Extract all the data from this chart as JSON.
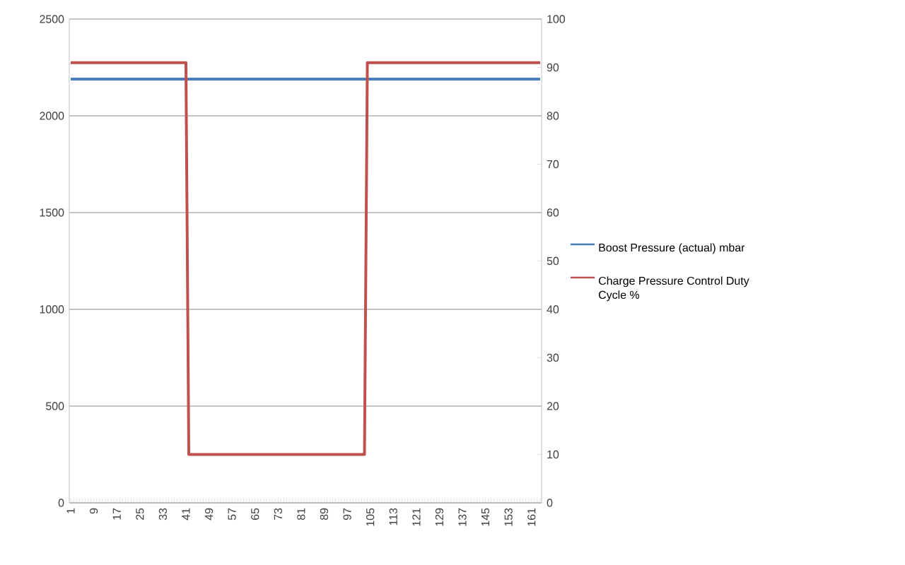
{
  "chart_data": {
    "type": "line",
    "categories": [
      "1",
      null,
      null,
      null,
      null,
      null,
      null,
      null,
      "9",
      null,
      null,
      null,
      null,
      null,
      null,
      null,
      "17",
      null,
      null,
      null,
      null,
      null,
      null,
      null,
      "25",
      null,
      null,
      null,
      null,
      null,
      null,
      null,
      "33",
      null,
      null,
      null,
      null,
      null,
      null,
      null,
      "41",
      null,
      null,
      null,
      null,
      null,
      null,
      null,
      "49",
      null,
      null,
      null,
      null,
      null,
      null,
      null,
      "57",
      null,
      null,
      null,
      null,
      null,
      null,
      null,
      "65",
      null,
      null,
      null,
      null,
      null,
      null,
      null,
      "73",
      null,
      null,
      null,
      null,
      null,
      null,
      null,
      "81",
      null,
      null,
      null,
      null,
      null,
      null,
      null,
      "89",
      null,
      null,
      null,
      null,
      null,
      null,
      null,
      "97",
      null,
      null,
      null,
      null,
      null,
      null,
      null,
      "105",
      null,
      null,
      null,
      null,
      null,
      null,
      null,
      "113",
      null,
      null,
      null,
      null,
      null,
      null,
      null,
      "121",
      null,
      null,
      null,
      null,
      null,
      null,
      null,
      "129",
      null,
      null,
      null,
      null,
      null,
      null,
      null,
      "137",
      null,
      null,
      null,
      null,
      null,
      null,
      null,
      "145",
      null,
      null,
      null,
      null,
      null,
      null,
      null,
      "153",
      null,
      null,
      null,
      null,
      null,
      null,
      null,
      "161",
      null,
      null,
      null
    ],
    "series": [
      {
        "name": "Boost Pressure (actual)  mbar",
        "color": "#4a7ebb",
        "values": [
          2190,
          2190,
          2190,
          2190,
          2190,
          2190,
          2190,
          2190,
          2190,
          2190,
          2190,
          2190,
          2190,
          2190,
          2190,
          2190,
          2190,
          2190,
          2190,
          2190,
          2190,
          2190,
          2190,
          2190,
          2190,
          2190,
          2190,
          2190,
          2190,
          2190,
          2190,
          2190,
          2190,
          2190,
          2190,
          2190,
          2190,
          2190,
          2190,
          2190,
          2190,
          2190,
          2190,
          2190,
          2190,
          2190,
          2190,
          2190,
          2190,
          2190,
          2190,
          2190,
          2190,
          2190,
          2190,
          2190,
          2190,
          2190,
          2190,
          2190,
          2190,
          2190,
          2190,
          2190,
          2190,
          2190,
          2190,
          2190,
          2190,
          2190,
          2190,
          2190,
          2190,
          2190,
          2190,
          2190,
          2190,
          2190,
          2190,
          2190,
          2190,
          2190,
          2190,
          2190,
          2190,
          2190,
          2190,
          2190,
          2190,
          2190,
          2190,
          2190,
          2190,
          2190,
          2190,
          2190,
          2190,
          2190,
          2190,
          2190,
          2190,
          2190,
          2190,
          2190,
          2190,
          2190,
          2190,
          2190,
          2190,
          2190,
          2190,
          2190,
          2190,
          2190,
          2190,
          2190,
          2190,
          2190,
          2190,
          2190,
          2190,
          2190,
          2190,
          2190,
          2190,
          2190,
          2190,
          2190,
          2190,
          2190,
          2190,
          2190,
          2190,
          2190,
          2190,
          2190,
          2190,
          2190,
          2190,
          2190,
          2190,
          2190,
          2190,
          2190,
          2190,
          2190,
          2190,
          2190,
          2190,
          2190,
          2190,
          2190,
          2190,
          2190,
          2190,
          2190,
          2190,
          2190,
          2190,
          2190,
          2190,
          2190,
          2190,
          2190
        ]
      },
      {
        "name": "Charge Pressure Control Duty Cycle %",
        "color": "#c0504d",
        "axis": "y2",
        "values": [
          91,
          91,
          91,
          91,
          91,
          91,
          91,
          91,
          91,
          91,
          91,
          91,
          91,
          91,
          91,
          91,
          91,
          91,
          91,
          91,
          91,
          91,
          91,
          91,
          91,
          91,
          91,
          91,
          91,
          91,
          91,
          91,
          91,
          91,
          91,
          91,
          91,
          91,
          91,
          91,
          91,
          10,
          10,
          10,
          10,
          10,
          10,
          10,
          10,
          10,
          10,
          10,
          10,
          10,
          10,
          10,
          10,
          10,
          10,
          10,
          10,
          10,
          10,
          10,
          10,
          10,
          10,
          10,
          10,
          10,
          10,
          10,
          10,
          10,
          10,
          10,
          10,
          10,
          10,
          10,
          10,
          10,
          10,
          10,
          10,
          10,
          10,
          10,
          10,
          10,
          10,
          10,
          10,
          10,
          10,
          10,
          10,
          10,
          10,
          10,
          10,
          10,
          10,
          91,
          91,
          91,
          91,
          91,
          91,
          91,
          91,
          91,
          91,
          91,
          91,
          91,
          91,
          91,
          91,
          91,
          91,
          91,
          91,
          91,
          91,
          91,
          91,
          91,
          91,
          91,
          91,
          91,
          91,
          91,
          91,
          91,
          91,
          91,
          91,
          91,
          91,
          91,
          91,
          91,
          91,
          91,
          91,
          91,
          91,
          91,
          91,
          91,
          91,
          91,
          91,
          91,
          91,
          91,
          91,
          91,
          91,
          91,
          91,
          91
        ]
      }
    ],
    "ylim": [
      0,
      2500
    ],
    "yticks": [
      0,
      500,
      1000,
      1500,
      2000,
      2500
    ],
    "y2lim": [
      0,
      100
    ],
    "y2ticks": [
      0,
      10,
      20,
      30,
      40,
      50,
      60,
      70,
      80,
      90,
      100
    ],
    "grid": "y",
    "legend": "right",
    "marker": "none",
    "line_style": "solid"
  }
}
